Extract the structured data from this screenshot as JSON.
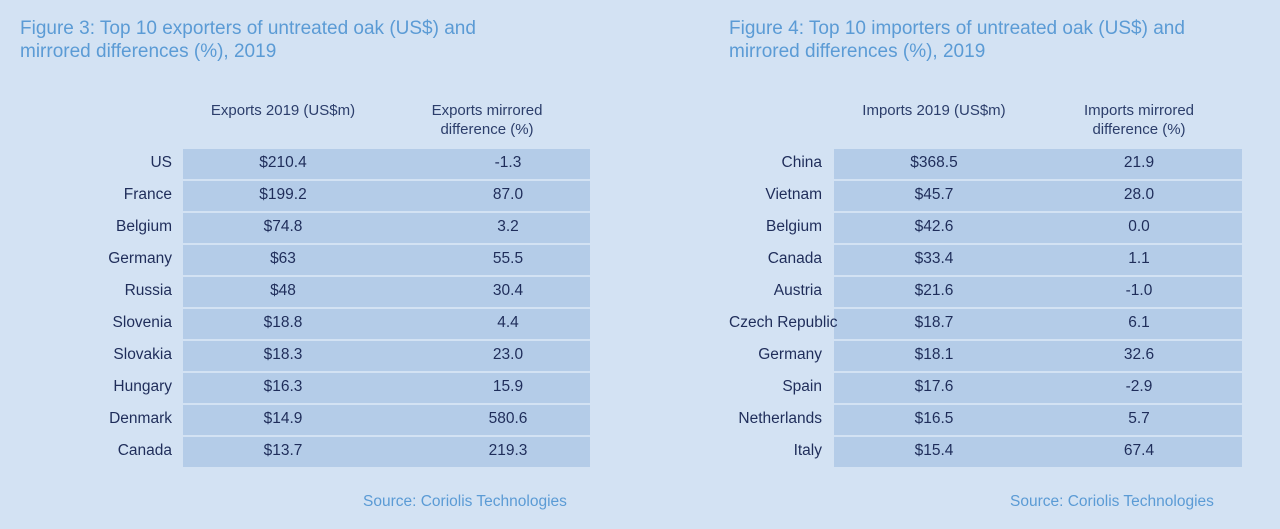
{
  "chart_data": [
    {
      "type": "table",
      "title_line1": "Figure 3: Top 10 exporters of untreated oak (US$) and",
      "title_line2": "mirrored differences (%), 2019",
      "columns": [
        {
          "line1": "Exports 2019 (US$m)",
          "line2": ""
        },
        {
          "line1": "Exports mirrored",
          "line2": "difference (%)"
        }
      ],
      "rows": [
        {
          "label": "US",
          "value": "$210.4",
          "diff": "-1.3"
        },
        {
          "label": "France",
          "value": "$199.2",
          "diff": "87.0"
        },
        {
          "label": "Belgium",
          "value": "$74.8",
          "diff": "3.2"
        },
        {
          "label": "Germany",
          "value": "$63",
          "diff": "55.5"
        },
        {
          "label": "Russia",
          "value": "$48",
          "diff": "30.4"
        },
        {
          "label": "Slovenia",
          "value": "$18.8",
          "diff": "4.4"
        },
        {
          "label": "Slovakia",
          "value": "$18.3",
          "diff": "23.0"
        },
        {
          "label": "Hungary",
          "value": "$16.3",
          "diff": "15.9"
        },
        {
          "label": "Denmark",
          "value": "$14.9",
          "diff": "580.6"
        },
        {
          "label": "Canada",
          "value": "$13.7",
          "diff": "219.3"
        }
      ],
      "source": "Source: Coriolis Technologies"
    },
    {
      "type": "table",
      "title_line1": "Figure 4: Top 10 importers of untreated oak (US$) and",
      "title_line2": "mirrored differences (%), 2019",
      "columns": [
        {
          "line1": "Imports 2019 (US$m)",
          "line2": ""
        },
        {
          "line1": "Imports mirrored",
          "line2": "difference (%)"
        }
      ],
      "rows": [
        {
          "label": "China",
          "value": "$368.5",
          "diff": "21.9"
        },
        {
          "label": "Vietnam",
          "value": "$45.7",
          "diff": "28.0"
        },
        {
          "label": "Belgium",
          "value": "$42.6",
          "diff": "0.0"
        },
        {
          "label": "Canada",
          "value": "$33.4",
          "diff": "1.1"
        },
        {
          "label": "Austria",
          "value": "$21.6",
          "diff": "-1.0"
        },
        {
          "label": "Czech Republic",
          "value": "$18.7",
          "diff": "6.1"
        },
        {
          "label": "Germany",
          "value": "$18.1",
          "diff": "32.6"
        },
        {
          "label": "Spain",
          "value": "$17.6",
          "diff": "-2.9"
        },
        {
          "label": "Netherlands",
          "value": "$16.5",
          "diff": "5.7"
        },
        {
          "label": "Italy",
          "value": "$15.4",
          "diff": "67.4"
        }
      ],
      "source": "Source: Coriolis Technologies"
    }
  ],
  "colors": {
    "background": "#d3e2f3",
    "band": "#b4cce8",
    "title": "#5b9bd5",
    "text": "#1f2d5a"
  }
}
